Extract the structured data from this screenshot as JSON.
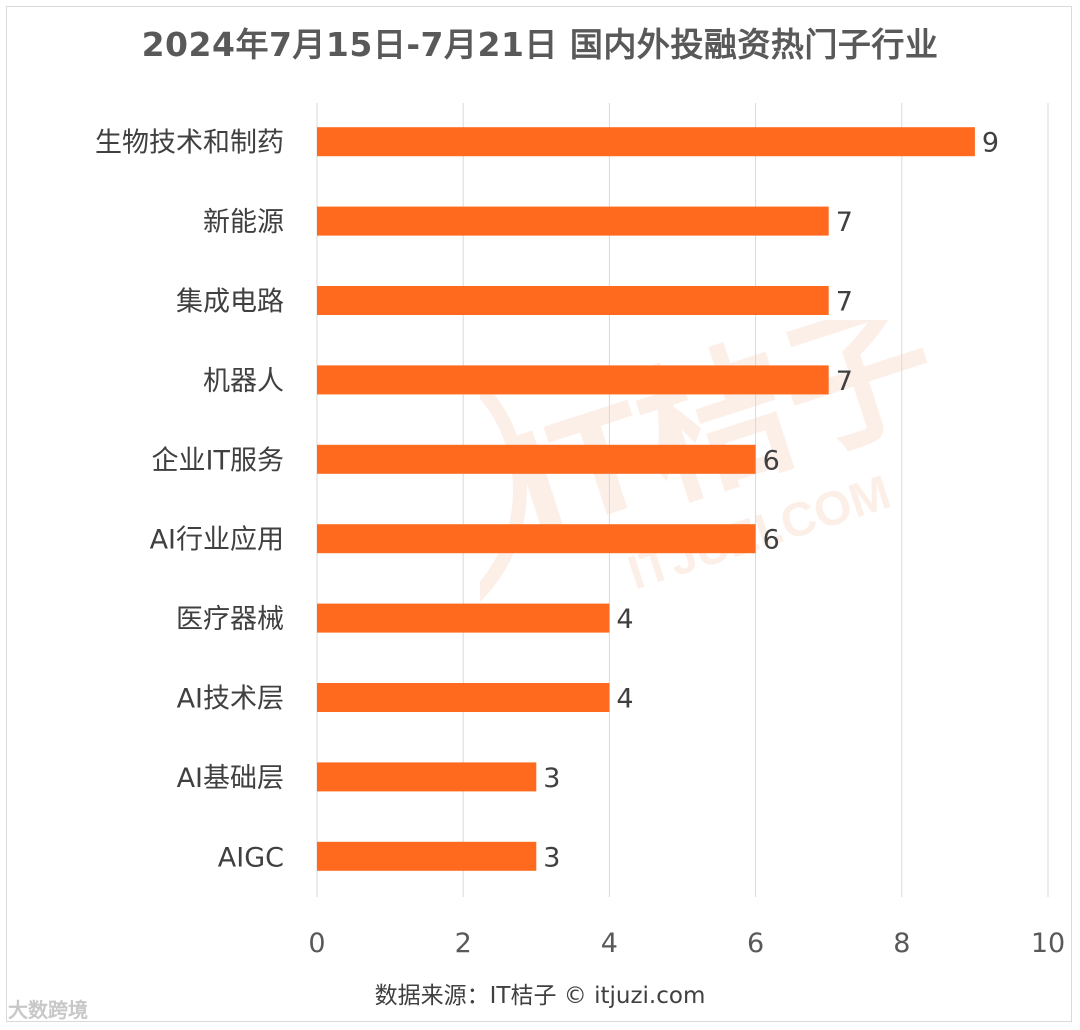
{
  "title": "2024年7月15日-7月21日 国内外投融资热门子行业",
  "source": "数据来源：IT桔子 © itjuzi.com",
  "watermark_text": "IT桔子",
  "watermark_url": "ITJUZI.COM",
  "footer_watermark": "大数跨境",
  "colors": {
    "bar": "#ff6a1f",
    "grid": "#d9d9d9",
    "watermark": "#fbe3d6"
  },
  "chart_data": {
    "type": "bar",
    "orientation": "horizontal",
    "categories": [
      "生物技术和制药",
      "新能源",
      "集成电路",
      "机器人",
      "企业IT服务",
      "AI行业应用",
      "医疗器械",
      "AI技术层",
      "AI基础层",
      "AIGC"
    ],
    "values": [
      9,
      7,
      7,
      7,
      6,
      6,
      4,
      4,
      3,
      3
    ],
    "xlim": [
      0,
      10
    ],
    "xticks": [
      0,
      2,
      4,
      6,
      8,
      10
    ],
    "grid": "vertical",
    "data_labels": true
  }
}
